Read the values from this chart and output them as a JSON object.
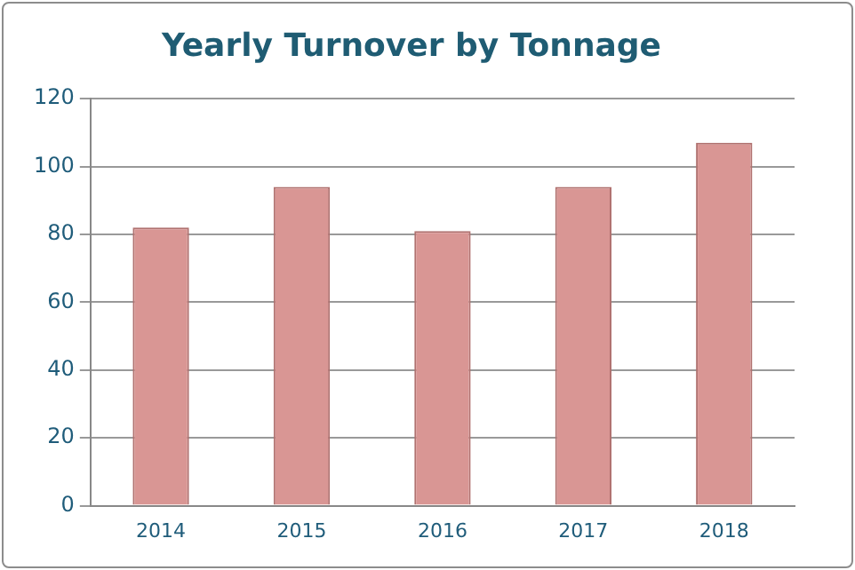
{
  "chart_data": {
    "type": "bar",
    "title": "Yearly Turnover by Tonnage",
    "categories": [
      "2014",
      "2015",
      "2016",
      "2017",
      "2018"
    ],
    "values": [
      82,
      94,
      81,
      94,
      107
    ],
    "color": "#d99694",
    "ylim": [
      0,
      120
    ],
    "yticks": [
      0,
      20,
      40,
      60,
      80,
      100,
      120
    ],
    "grid": "y",
    "legend": false
  }
}
